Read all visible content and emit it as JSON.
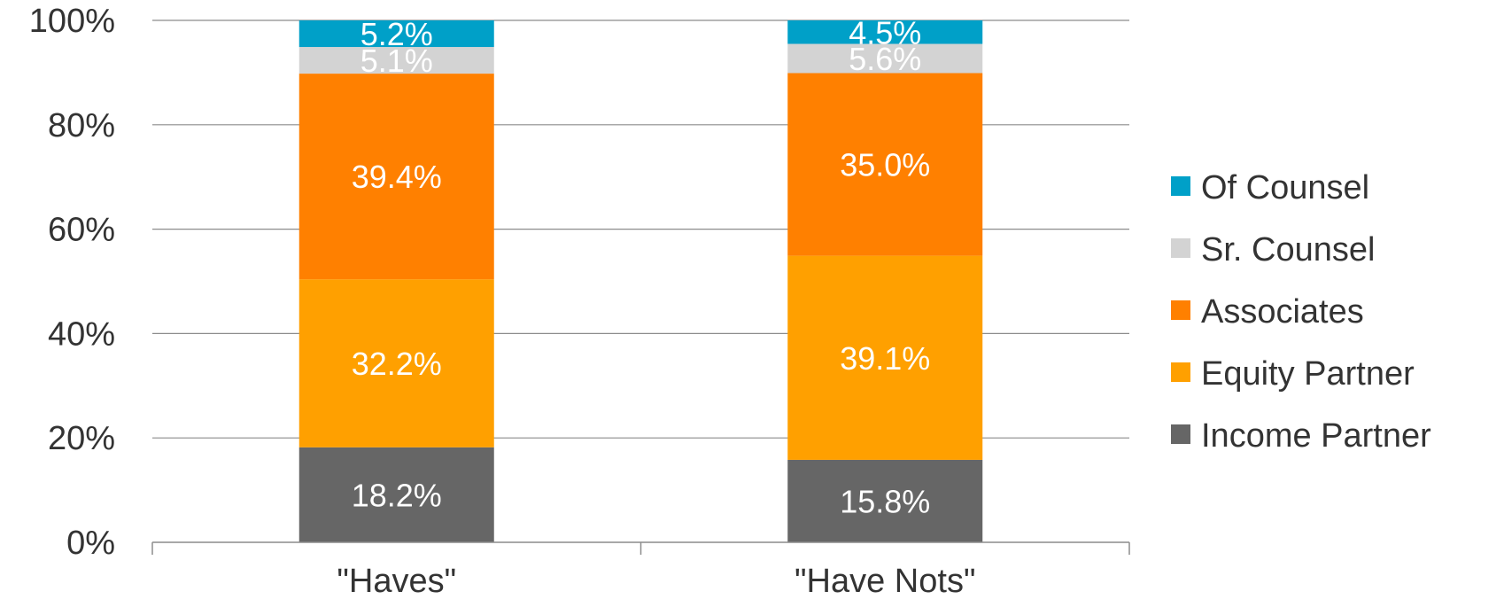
{
  "chart_data": {
    "type": "bar",
    "stacked": true,
    "percent_stacked": true,
    "categories": [
      "\"Haves\"",
      "\"Have Nots\""
    ],
    "series": [
      {
        "name": "Income Partner",
        "values": [
          18.2,
          15.8
        ],
        "labels": [
          "18.2%",
          "15.8%"
        ],
        "color": "#666666"
      },
      {
        "name": "Equity Partner",
        "values": [
          32.2,
          39.1
        ],
        "labels": [
          "32.2%",
          "39.1%"
        ],
        "color": "#FFA000"
      },
      {
        "name": "Associates",
        "values": [
          39.4,
          35.0
        ],
        "labels": [
          "39.4%",
          "35.0%"
        ],
        "color": "#FF8000"
      },
      {
        "name": "Sr. Counsel",
        "values": [
          5.1,
          5.6
        ],
        "labels": [
          "5.1%",
          "5.6%"
        ],
        "color": "#D3D3D3"
      },
      {
        "name": "Of Counsel",
        "values": [
          5.2,
          4.5
        ],
        "labels": [
          "5.2%",
          "4.5%"
        ],
        "color": "#00A0C8"
      }
    ],
    "y_ticks": [
      "0%",
      "20%",
      "40%",
      "60%",
      "80%",
      "100%"
    ],
    "y_tick_values": [
      0,
      20,
      40,
      60,
      80,
      100
    ],
    "ylim": [
      0,
      100
    ],
    "grid": true,
    "legend_placement": "right",
    "legend_order": [
      "Of Counsel",
      "Sr. Counsel",
      "Associates",
      "Equity Partner",
      "Income Partner"
    ]
  }
}
